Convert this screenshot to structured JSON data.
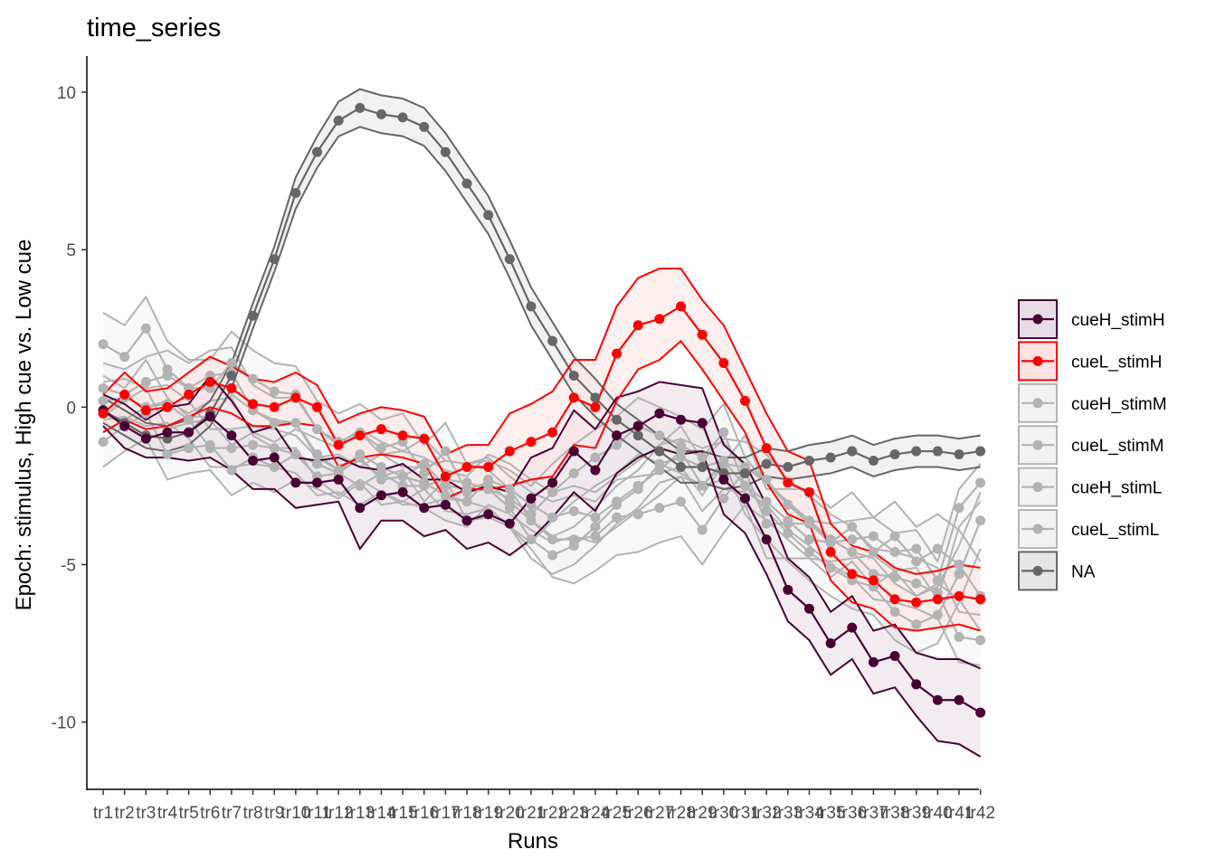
{
  "chart_data": {
    "type": "line",
    "title": "time_series",
    "xlabel": "Runs",
    "ylabel": "Epoch: stimulus, High cue vs. Low cue",
    "ylim": [
      -12.3,
      11
    ],
    "yticks": [
      -10,
      -5,
      0,
      5,
      10
    ],
    "ytick_labels": [
      "-10",
      "-5",
      "0",
      "5",
      "10"
    ],
    "grid": false,
    "legend_position": "right",
    "x": [
      "tr1",
      "tr2",
      "tr3",
      "tr4",
      "tr5",
      "tr6",
      "tr7",
      "tr8",
      "tr9",
      "tr10",
      "tr11",
      "tr12",
      "tr13",
      "tr14",
      "tr15",
      "tr16",
      "tr17",
      "tr18",
      "tr19",
      "tr20",
      "tr21",
      "tr22",
      "tr23",
      "tr24",
      "tr25",
      "tr26",
      "tr27",
      "tr28",
      "tr29",
      "tr30",
      "tr31",
      "tr32",
      "tr33",
      "tr34",
      "tr35",
      "tr36",
      "tr37",
      "tr38",
      "tr39",
      "tr40",
      "tr41",
      "tr42"
    ],
    "series": [
      {
        "name": "cueH_stimH",
        "color": "#4a0033",
        "fill": "#e8dde6",
        "values": [
          -0.1,
          -0.6,
          -1.0,
          -0.8,
          -0.8,
          -0.3,
          -0.9,
          -1.7,
          -1.6,
          -2.4,
          -2.4,
          -2.3,
          -3.2,
          -2.8,
          -2.7,
          -3.2,
          -3.1,
          -3.6,
          -3.4,
          -3.7,
          -2.9,
          -2.4,
          -1.4,
          -2.0,
          -0.9,
          -0.6,
          -0.2,
          -0.4,
          -0.5,
          -2.3,
          -2.9,
          -4.2,
          -5.8,
          -6.4,
          -7.5,
          -7.0,
          -8.1,
          -7.9,
          -8.8,
          -9.3,
          -9.3,
          -9.7
        ],
        "lower": [
          -0.6,
          -1.3,
          -1.6,
          -1.6,
          -1.7,
          -1.6,
          -2.0,
          -2.6,
          -2.6,
          -3.2,
          -3.1,
          -3.0,
          -4.5,
          -3.6,
          -3.6,
          -4.1,
          -3.9,
          -4.5,
          -4.3,
          -4.7,
          -4.2,
          -3.5,
          -2.7,
          -3.3,
          -2.1,
          -1.6,
          -1.3,
          -1.5,
          -1.4,
          -3.4,
          -4.0,
          -5.3,
          -6.8,
          -7.4,
          -8.5,
          -8.0,
          -9.1,
          -8.9,
          -9.8,
          -10.6,
          -10.7,
          -11.1
        ],
        "upper": [
          0.4,
          0.1,
          -0.4,
          0.0,
          0.1,
          1.0,
          0.2,
          -0.8,
          -0.6,
          -1.6,
          -1.7,
          -1.6,
          -1.9,
          -2.0,
          -1.8,
          -2.3,
          -2.3,
          -2.7,
          -2.5,
          -2.7,
          -1.6,
          -1.3,
          -0.1,
          -0.7,
          0.3,
          0.5,
          0.8,
          0.7,
          0.6,
          -1.2,
          -1.8,
          -3.1,
          -4.8,
          -5.4,
          -6.5,
          -6.0,
          -7.1,
          -6.9,
          -7.8,
          -8.0,
          -8.0,
          -8.3
        ]
      },
      {
        "name": "cueL_stimH",
        "color": "#ff0000",
        "fill": "#fde2e2",
        "values": [
          -0.2,
          0.4,
          -0.1,
          0.0,
          0.4,
          0.8,
          0.6,
          0.1,
          0.0,
          0.3,
          0.0,
          -1.2,
          -0.9,
          -0.7,
          -0.9,
          -1.0,
          -2.2,
          -1.9,
          -1.9,
          -1.4,
          -1.1,
          -0.8,
          0.3,
          0.0,
          1.7,
          2.6,
          2.8,
          3.2,
          2.3,
          1.4,
          0.2,
          -1.3,
          -2.4,
          -2.7,
          -4.6,
          -5.3,
          -5.5,
          -6.1,
          -6.2,
          -6.1,
          -6.0,
          -6.1
        ],
        "lower": [
          -0.8,
          -0.4,
          -0.7,
          -0.6,
          -0.3,
          0.0,
          -0.2,
          -0.6,
          -0.6,
          -0.5,
          -0.6,
          -1.9,
          -1.6,
          -1.5,
          -1.6,
          -1.8,
          -2.9,
          -2.6,
          -2.6,
          -2.5,
          -2.3,
          -2.2,
          -1.2,
          -1.3,
          0.2,
          1.2,
          1.5,
          2.1,
          1.2,
          0.2,
          -0.8,
          -2.4,
          -3.4,
          -3.7,
          -5.5,
          -6.2,
          -6.4,
          -7.0,
          -7.1,
          -7.0,
          -6.9,
          -7.1
        ],
        "upper": [
          0.4,
          1.1,
          0.5,
          0.6,
          1.1,
          1.6,
          1.3,
          0.9,
          0.8,
          1.1,
          0.7,
          -0.5,
          -0.2,
          0.0,
          -0.1,
          -0.3,
          -1.5,
          -1.2,
          -1.2,
          -0.2,
          0.1,
          0.5,
          1.5,
          1.5,
          3.2,
          4.1,
          4.4,
          4.4,
          3.4,
          2.6,
          1.2,
          -0.2,
          -1.4,
          -1.7,
          -3.7,
          -4.4,
          -4.6,
          -5.1,
          -5.3,
          -5.2,
          -5.0,
          -5.1
        ]
      },
      {
        "name": "cueH_stimM",
        "color": "#b3b3b3",
        "fill": "#f2f2f2",
        "values": [
          2.0,
          1.6,
          2.5,
          1.2,
          0.6,
          0.6,
          1.4,
          0.9,
          0.5,
          0.4,
          -0.7,
          -1.1,
          -0.8,
          -1.3,
          -1.1,
          -2.1,
          -1.4,
          -2.7,
          -2.6,
          -2.9,
          -3.4,
          -2.7,
          -2.1,
          -1.6,
          -1.2,
          -0.6,
          -0.9,
          -1.2,
          -1.6,
          -0.8,
          -2.5,
          -3.3,
          -4.0,
          -4.6,
          -5.1,
          -5.5,
          -5.7,
          -6.5,
          -6.9,
          -6.6,
          -5.3,
          -3.6
        ],
        "lower": [
          1.0,
          0.6,
          1.5,
          0.3,
          -0.3,
          -0.3,
          0.4,
          -0.1,
          -0.4,
          -0.5,
          -1.6,
          -2.0,
          -1.7,
          -2.2,
          -2.0,
          -3.0,
          -2.3,
          -3.6,
          -3.5,
          -3.8,
          -4.3,
          -3.6,
          -3.0,
          -2.5,
          -2.1,
          -1.5,
          -1.8,
          -2.1,
          -2.5,
          -1.7,
          -3.4,
          -4.2,
          -4.9,
          -5.5,
          -6.0,
          -6.4,
          -6.6,
          -7.4,
          -7.8,
          -7.5,
          -6.2,
          -4.5
        ],
        "upper": [
          3.0,
          2.6,
          3.5,
          2.1,
          1.5,
          1.5,
          2.4,
          1.8,
          1.4,
          1.3,
          0.2,
          -0.2,
          0.1,
          -0.4,
          -0.2,
          -1.2,
          -0.5,
          -1.8,
          -1.7,
          -2.0,
          -2.5,
          -1.8,
          -1.2,
          -0.7,
          -0.3,
          0.3,
          0.0,
          -0.3,
          -0.7,
          0.1,
          -1.6,
          -2.4,
          -3.1,
          -3.7,
          -4.2,
          -4.6,
          -4.8,
          -5.6,
          -6.0,
          -5.7,
          -4.4,
          -2.7
        ]
      },
      {
        "name": "cueL_stimM",
        "color": "#b3b3b3",
        "fill": "#f2f2f2",
        "values": [
          0.6,
          0.4,
          0.8,
          1.0,
          0.6,
          1.0,
          1.1,
          -0.1,
          -0.5,
          -0.5,
          -1.5,
          -2.0,
          -1.5,
          -1.9,
          -2.2,
          -1.8,
          -2.5,
          -2.6,
          -2.4,
          -3.0,
          -3.6,
          -4.2,
          -4.2,
          -4.1,
          -3.5,
          -3.4,
          -3.2,
          -3.0,
          -3.9,
          -2.9,
          -2.0,
          -3.7,
          -3.7,
          -3.7,
          -4.3,
          -3.8,
          -4.6,
          -4.1,
          -4.9,
          -4.5,
          -5.0,
          -6.0
        ],
        "lower": [
          -0.2,
          -0.4,
          0.0,
          0.2,
          -0.2,
          0.2,
          0.3,
          -0.9,
          -1.3,
          -1.3,
          -2.3,
          -2.8,
          -2.3,
          -2.7,
          -3.0,
          -2.6,
          -3.3,
          -3.4,
          -3.2,
          -3.8,
          -4.5,
          -5.4,
          -5.6,
          -5.2,
          -4.7,
          -4.6,
          -4.3,
          -4.1,
          -5.0,
          -4.0,
          -3.1,
          -4.8,
          -4.8,
          -4.8,
          -5.4,
          -4.9,
          -5.7,
          -5.2,
          -6.0,
          -5.6,
          -6.1,
          -7.1
        ],
        "upper": [
          1.4,
          1.2,
          1.6,
          1.8,
          1.4,
          1.8,
          1.9,
          0.7,
          0.3,
          0.3,
          -0.7,
          -1.2,
          -0.7,
          -1.1,
          -1.4,
          -1.0,
          -1.7,
          -1.8,
          -1.6,
          -2.2,
          -2.7,
          -3.0,
          -2.8,
          -3.0,
          -2.3,
          -2.2,
          -2.1,
          -1.9,
          -2.8,
          -1.8,
          -0.9,
          -2.6,
          -2.6,
          -2.6,
          -3.2,
          -2.7,
          -3.5,
          -3.0,
          -3.8,
          -3.4,
          -3.9,
          -4.9
        ]
      },
      {
        "name": "cueH_stimL",
        "color": "#b3b3b3",
        "fill": "#f2f2f2",
        "values": [
          -1.1,
          -0.6,
          -0.2,
          -1.5,
          -1.3,
          -1.2,
          -2.0,
          -1.6,
          -1.9,
          -1.5,
          -1.8,
          -2.1,
          -1.6,
          -2.3,
          -2.2,
          -2.4,
          -2.8,
          -3.0,
          -2.3,
          -2.6,
          -3.1,
          -3.5,
          -3.3,
          -3.5,
          -3.0,
          -2.5,
          -2.0,
          -1.4,
          -2.5,
          -1.8,
          -1.9,
          -2.3,
          -3.1,
          -3.6,
          -4.2,
          -4.6,
          -5.3,
          -5.4,
          -5.6,
          -5.9,
          -7.3,
          -7.4
        ],
        "lower": [
          -1.9,
          -1.4,
          -1.0,
          -2.3,
          -2.1,
          -2.0,
          -2.8,
          -2.4,
          -2.7,
          -2.3,
          -2.6,
          -2.9,
          -2.4,
          -3.1,
          -3.0,
          -3.2,
          -3.6,
          -3.8,
          -3.1,
          -3.4,
          -3.9,
          -4.3,
          -4.1,
          -4.3,
          -3.8,
          -3.3,
          -2.8,
          -2.2,
          -3.3,
          -2.6,
          -2.7,
          -3.1,
          -3.9,
          -4.4,
          -5.0,
          -5.4,
          -6.1,
          -6.2,
          -6.4,
          -6.7,
          -8.1,
          -8.2
        ],
        "upper": [
          -0.3,
          0.2,
          0.6,
          -0.7,
          -0.5,
          -0.4,
          -1.2,
          -0.8,
          -1.1,
          -0.7,
          -1.0,
          -1.3,
          -0.8,
          -1.5,
          -1.4,
          -1.6,
          -2.0,
          -2.2,
          -1.5,
          -1.8,
          -2.3,
          -2.7,
          -2.5,
          -2.7,
          -2.2,
          -1.7,
          -1.2,
          -0.6,
          -1.7,
          -1.0,
          -1.1,
          -1.5,
          -2.3,
          -2.8,
          -3.4,
          -3.8,
          -4.5,
          -4.6,
          -4.8,
          -5.1,
          -6.5,
          -6.6
        ]
      },
      {
        "name": "cueL_stimL",
        "color": "#b3b3b3",
        "fill": "#f2f2f2",
        "values": [
          0.2,
          0.3,
          0.0,
          0.1,
          -0.4,
          -1.3,
          -1.3,
          -1.2,
          -1.3,
          -1.5,
          -2.2,
          -2.1,
          -2.5,
          -2.1,
          -2.5,
          -2.5,
          -2.3,
          -2.4,
          -2.6,
          -3.2,
          -4.2,
          -4.7,
          -4.4,
          -3.8,
          -3.1,
          -2.6,
          -1.8,
          -1.6,
          -1.9,
          -1.7,
          -2.5,
          -3.0,
          -3.6,
          -4.2,
          -4.3,
          -4.2,
          -4.1,
          -4.6,
          -4.5,
          -5.5,
          -3.2,
          -2.4
        ],
        "lower": [
          -0.4,
          -0.3,
          -0.6,
          -0.5,
          -1.0,
          -1.9,
          -1.9,
          -1.8,
          -1.9,
          -2.1,
          -2.8,
          -2.7,
          -3.1,
          -2.7,
          -3.1,
          -3.1,
          -2.9,
          -3.0,
          -3.2,
          -3.8,
          -4.8,
          -5.3,
          -5.0,
          -4.4,
          -3.7,
          -3.2,
          -2.4,
          -2.2,
          -2.5,
          -2.3,
          -3.1,
          -3.6,
          -4.2,
          -4.8,
          -4.9,
          -4.8,
          -4.7,
          -5.2,
          -5.1,
          -6.1,
          -3.8,
          -3.0
        ],
        "upper": [
          0.8,
          0.9,
          0.6,
          0.7,
          0.2,
          -0.7,
          -0.7,
          -0.6,
          -0.7,
          -0.9,
          -1.6,
          -1.5,
          -1.9,
          -1.5,
          -1.9,
          -1.9,
          -1.7,
          -1.8,
          -2.0,
          -2.6,
          -3.6,
          -4.1,
          -3.8,
          -3.2,
          -2.5,
          -2.0,
          -1.2,
          -1.0,
          -1.3,
          -1.1,
          -1.9,
          -2.4,
          -3.0,
          -3.6,
          -3.7,
          -3.6,
          -3.5,
          -4.0,
          -3.9,
          -4.9,
          -2.6,
          -1.8
        ]
      },
      {
        "name": "NA",
        "color": "#666666",
        "fill": "#e6e6e6",
        "values": [
          -0.1,
          -0.5,
          -0.9,
          -1.0,
          -0.8,
          -0.2,
          1.0,
          2.9,
          4.7,
          6.8,
          8.1,
          9.1,
          9.5,
          9.3,
          9.2,
          8.9,
          8.1,
          7.1,
          6.1,
          4.7,
          3.2,
          2.1,
          1.0,
          0.3,
          -0.4,
          -0.9,
          -1.4,
          -1.9,
          -1.9,
          -2.1,
          -2.1,
          -1.8,
          -1.9,
          -1.7,
          -1.6,
          -1.4,
          -1.7,
          -1.5,
          -1.4,
          -1.4,
          -1.5,
          -1.4
        ],
        "lower": [
          -0.5,
          -0.9,
          -1.3,
          -1.4,
          -1.2,
          -0.6,
          0.6,
          2.5,
          4.3,
          6.3,
          7.6,
          8.6,
          8.9,
          8.7,
          8.6,
          8.3,
          7.5,
          6.5,
          5.5,
          4.1,
          2.6,
          1.5,
          0.4,
          -0.3,
          -0.9,
          -1.4,
          -1.9,
          -2.4,
          -2.4,
          -2.6,
          -2.5,
          -2.2,
          -2.3,
          -2.2,
          -2.1,
          -1.9,
          -2.2,
          -2.0,
          -1.9,
          -1.9,
          -2.0,
          -1.9
        ],
        "upper": [
          0.3,
          -0.1,
          -0.5,
          -0.6,
          -0.4,
          0.2,
          1.4,
          3.3,
          5.1,
          7.3,
          8.6,
          9.7,
          10.1,
          9.9,
          9.8,
          9.5,
          8.7,
          7.7,
          6.7,
          5.3,
          3.8,
          2.7,
          1.6,
          0.9,
          0.1,
          -0.4,
          -0.9,
          -1.4,
          -1.4,
          -1.6,
          -1.6,
          -1.3,
          -1.4,
          -1.2,
          -1.1,
          -0.9,
          -1.2,
          -1.0,
          -0.9,
          -0.9,
          -1.0,
          -0.9
        ]
      }
    ]
  }
}
